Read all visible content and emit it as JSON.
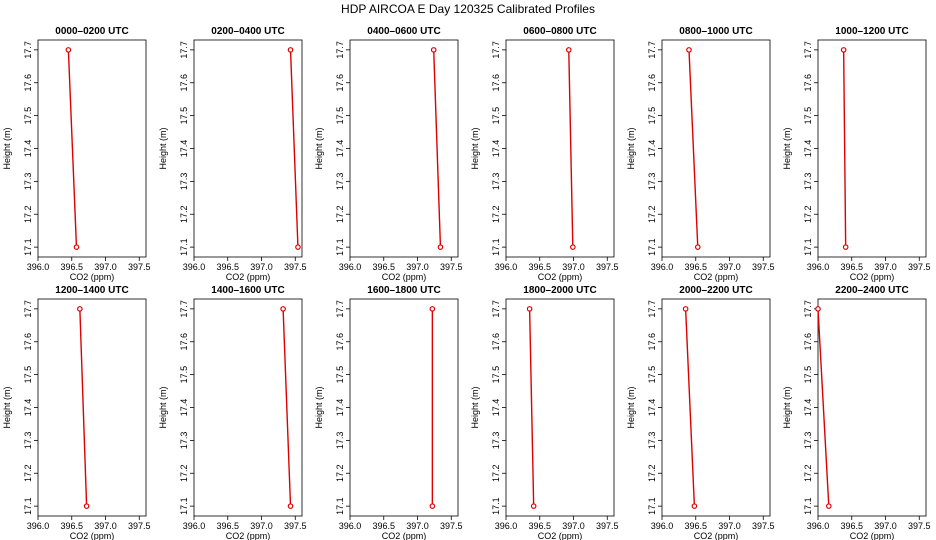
{
  "figure_title": "HDP AIRCOA E  Day 120325  Calibrated Profiles",
  "chart_data": [
    {
      "type": "line",
      "title": "0000–0200 UTC",
      "xlabel": "CO2 (ppm)",
      "ylabel": "Height (m)",
      "xlim": [
        396.0,
        397.6
      ],
      "ylim": [
        17.07,
        17.73
      ],
      "x_ticks": [
        "396.0",
        "396.5",
        "397.0",
        "397.5"
      ],
      "y_ticks": [
        "17.1",
        "17.2",
        "17.3",
        "17.4",
        "17.5",
        "17.6",
        "17.7"
      ],
      "series": [
        {
          "x": [
            396.45,
            396.57
          ],
          "y": [
            17.7,
            17.1
          ]
        }
      ],
      "line_color": "#dd0000",
      "grid": false
    },
    {
      "type": "line",
      "title": "0200–0400 UTC",
      "xlabel": "CO2 (ppm)",
      "ylabel": "Height (m)",
      "xlim": [
        396.0,
        397.6
      ],
      "ylim": [
        17.07,
        17.73
      ],
      "x_ticks": [
        "396.0",
        "396.5",
        "397.0",
        "397.5"
      ],
      "y_ticks": [
        "17.1",
        "17.2",
        "17.3",
        "17.4",
        "17.5",
        "17.6",
        "17.7"
      ],
      "series": [
        {
          "x": [
            397.43,
            397.54
          ],
          "y": [
            17.7,
            17.1
          ]
        }
      ],
      "line_color": "#dd0000",
      "grid": false
    },
    {
      "type": "line",
      "title": "0400–0600 UTC",
      "xlabel": "CO2 (ppm)",
      "ylabel": "Height (m)",
      "xlim": [
        396.0,
        397.6
      ],
      "ylim": [
        17.07,
        17.73
      ],
      "x_ticks": [
        "396.0",
        "396.5",
        "397.0",
        "397.5"
      ],
      "y_ticks": [
        "17.1",
        "17.2",
        "17.3",
        "17.4",
        "17.5",
        "17.6",
        "17.7"
      ],
      "series": [
        {
          "x": [
            397.24,
            397.34
          ],
          "y": [
            17.7,
            17.1
          ]
        }
      ],
      "line_color": "#dd0000",
      "grid": false
    },
    {
      "type": "line",
      "title": "0600–0800 UTC",
      "xlabel": "CO2 (ppm)",
      "ylabel": "Height (m)",
      "xlim": [
        396.0,
        397.6
      ],
      "ylim": [
        17.07,
        17.73
      ],
      "x_ticks": [
        "396.0",
        "396.5",
        "397.0",
        "397.5"
      ],
      "y_ticks": [
        "17.1",
        "17.2",
        "17.3",
        "17.4",
        "17.5",
        "17.6",
        "17.7"
      ],
      "series": [
        {
          "x": [
            396.93,
            396.99
          ],
          "y": [
            17.7,
            17.1
          ]
        }
      ],
      "line_color": "#dd0000",
      "grid": false
    },
    {
      "type": "line",
      "title": "0800–1000 UTC",
      "xlabel": "CO2 (ppm)",
      "ylabel": "Height (m)",
      "xlim": [
        396.0,
        397.6
      ],
      "ylim": [
        17.07,
        17.73
      ],
      "x_ticks": [
        "396.0",
        "396.5",
        "397.0",
        "397.5"
      ],
      "y_ticks": [
        "17.1",
        "17.2",
        "17.3",
        "17.4",
        "17.5",
        "17.6",
        "17.7"
      ],
      "series": [
        {
          "x": [
            396.4,
            396.53
          ],
          "y": [
            17.7,
            17.1
          ]
        }
      ],
      "line_color": "#dd0000",
      "grid": false
    },
    {
      "type": "line",
      "title": "1000–1200 UTC",
      "xlabel": "CO2 (ppm)",
      "ylabel": "Height (m)",
      "xlim": [
        396.0,
        397.6
      ],
      "ylim": [
        17.07,
        17.73
      ],
      "x_ticks": [
        "396.0",
        "396.5",
        "397.0",
        "397.5"
      ],
      "y_ticks": [
        "17.1",
        "17.2",
        "17.3",
        "17.4",
        "17.5",
        "17.6",
        "17.7"
      ],
      "series": [
        {
          "x": [
            396.38,
            396.41
          ],
          "y": [
            17.7,
            17.1
          ]
        }
      ],
      "line_color": "#dd0000",
      "grid": false
    },
    {
      "type": "line",
      "title": "1200–1400 UTC",
      "xlabel": "CO2 (ppm)",
      "ylabel": "Height (m)",
      "xlim": [
        396.0,
        397.6
      ],
      "ylim": [
        17.07,
        17.73
      ],
      "x_ticks": [
        "396.0",
        "396.5",
        "397.0",
        "397.5"
      ],
      "y_ticks": [
        "17.1",
        "17.2",
        "17.3",
        "17.4",
        "17.5",
        "17.6",
        "17.7"
      ],
      "series": [
        {
          "x": [
            396.62,
            396.72
          ],
          "y": [
            17.7,
            17.1
          ]
        }
      ],
      "line_color": "#dd0000",
      "grid": false
    },
    {
      "type": "line",
      "title": "1400–1600 UTC",
      "xlabel": "CO2 (ppm)",
      "ylabel": "Height (m)",
      "xlim": [
        396.0,
        397.6
      ],
      "ylim": [
        17.07,
        17.73
      ],
      "x_ticks": [
        "396.0",
        "396.5",
        "397.0",
        "397.5"
      ],
      "y_ticks": [
        "17.1",
        "17.2",
        "17.3",
        "17.4",
        "17.5",
        "17.6",
        "17.7"
      ],
      "series": [
        {
          "x": [
            397.32,
            397.43
          ],
          "y": [
            17.7,
            17.1
          ]
        }
      ],
      "line_color": "#dd0000",
      "grid": false
    },
    {
      "type": "line",
      "title": "1600–1800 UTC",
      "xlabel": "CO2 (ppm)",
      "ylabel": "Height (m)",
      "xlim": [
        396.0,
        397.6
      ],
      "ylim": [
        17.07,
        17.73
      ],
      "x_ticks": [
        "396.0",
        "396.5",
        "397.0",
        "397.5"
      ],
      "y_ticks": [
        "17.1",
        "17.2",
        "17.3",
        "17.4",
        "17.5",
        "17.6",
        "17.7"
      ],
      "series": [
        {
          "x": [
            397.22,
            397.22
          ],
          "y": [
            17.7,
            17.1
          ]
        }
      ],
      "line_color": "#dd0000",
      "grid": false
    },
    {
      "type": "line",
      "title": "1800–2000 UTC",
      "xlabel": "CO2 (ppm)",
      "ylabel": "Height (m)",
      "xlim": [
        396.0,
        397.6
      ],
      "ylim": [
        17.07,
        17.73
      ],
      "x_ticks": [
        "396.0",
        "396.5",
        "397.0",
        "397.5"
      ],
      "y_ticks": [
        "17.1",
        "17.2",
        "17.3",
        "17.4",
        "17.5",
        "17.6",
        "17.7"
      ],
      "series": [
        {
          "x": [
            396.35,
            396.41
          ],
          "y": [
            17.7,
            17.1
          ]
        }
      ],
      "line_color": "#dd0000",
      "grid": false
    },
    {
      "type": "line",
      "title": "2000–2200 UTC",
      "xlabel": "CO2 (ppm)",
      "ylabel": "Height (m)",
      "xlim": [
        396.0,
        397.6
      ],
      "ylim": [
        17.07,
        17.73
      ],
      "x_ticks": [
        "396.0",
        "396.5",
        "397.0",
        "397.5"
      ],
      "y_ticks": [
        "17.1",
        "17.2",
        "17.3",
        "17.4",
        "17.5",
        "17.6",
        "17.7"
      ],
      "series": [
        {
          "x": [
            396.35,
            396.48
          ],
          "y": [
            17.7,
            17.1
          ]
        }
      ],
      "line_color": "#dd0000",
      "grid": false
    },
    {
      "type": "line",
      "title": "2200–2400 UTC",
      "xlabel": "CO2 (ppm)",
      "ylabel": "Height (m)",
      "xlim": [
        396.0,
        397.6
      ],
      "ylim": [
        17.07,
        17.73
      ],
      "x_ticks": [
        "396.0",
        "396.5",
        "397.0",
        "397.5"
      ],
      "y_ticks": [
        "17.1",
        "17.2",
        "17.3",
        "17.4",
        "17.5",
        "17.6",
        "17.7"
      ],
      "series": [
        {
          "x": [
            396.0,
            396.16
          ],
          "y": [
            17.7,
            17.1
          ]
        }
      ],
      "line_color": "#dd0000",
      "grid": false
    }
  ]
}
